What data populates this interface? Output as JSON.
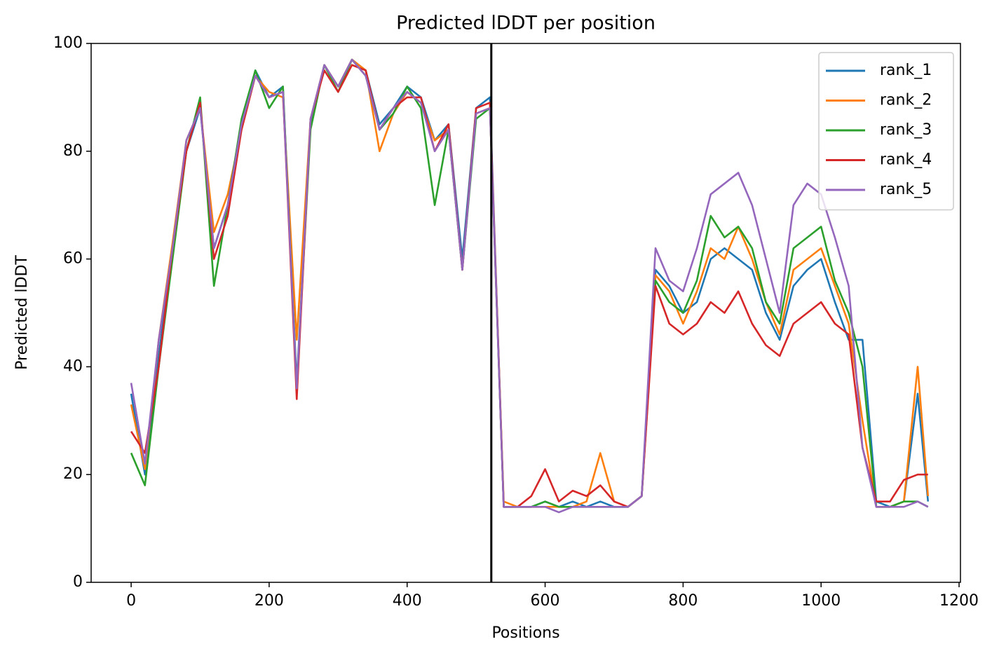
{
  "chart_data": {
    "type": "line",
    "title": "Predicted lDDT per position",
    "x_label": "Positions",
    "y_label": "Predicted lDDT",
    "x": [
      0,
      20,
      40,
      60,
      80,
      100,
      120,
      140,
      160,
      180,
      200,
      220,
      240,
      260,
      280,
      300,
      320,
      340,
      360,
      380,
      400,
      420,
      440,
      460,
      480,
      500,
      520,
      540,
      560,
      580,
      600,
      620,
      640,
      660,
      680,
      700,
      720,
      740,
      760,
      780,
      800,
      820,
      840,
      860,
      880,
      900,
      920,
      940,
      960,
      980,
      1000,
      1020,
      1040,
      1060,
      1080,
      1100,
      1120,
      1140,
      1155
    ],
    "series": [
      {
        "name": "rank_1",
        "color": "#1f77b4",
        "values": [
          35,
          20,
          42,
          62,
          80,
          88,
          62,
          70,
          85,
          95,
          90,
          92,
          37,
          85,
          96,
          92,
          97,
          95,
          85,
          88,
          92,
          90,
          82,
          85,
          60,
          88,
          90,
          14,
          14,
          14,
          15,
          14,
          15,
          14,
          15,
          14,
          14,
          16,
          58,
          55,
          50,
          52,
          60,
          62,
          60,
          58,
          50,
          45,
          55,
          58,
          60,
          52,
          45,
          45,
          15,
          14,
          15,
          35,
          15
        ]
      },
      {
        "name": "rank_2",
        "color": "#ff7f0e",
        "values": [
          33,
          21,
          45,
          63,
          82,
          88,
          65,
          72,
          84,
          94,
          91,
          90,
          45,
          86,
          96,
          92,
          97,
          95,
          80,
          87,
          91,
          89,
          82,
          84,
          58,
          87,
          88,
          15,
          14,
          14,
          14,
          14,
          14,
          15,
          24,
          15,
          14,
          16,
          57,
          54,
          48,
          54,
          62,
          60,
          66,
          60,
          52,
          46,
          58,
          60,
          62,
          55,
          48,
          30,
          14,
          14,
          15,
          40,
          16
        ]
      },
      {
        "name": "rank_3",
        "color": "#2ca02c",
        "values": [
          24,
          18,
          40,
          60,
          80,
          90,
          55,
          70,
          86,
          95,
          88,
          92,
          36,
          84,
          96,
          91,
          97,
          94,
          84,
          87,
          92,
          88,
          70,
          84,
          58,
          86,
          88,
          14,
          14,
          14,
          15,
          14,
          14,
          14,
          14,
          14,
          14,
          16,
          56,
          52,
          50,
          56,
          68,
          64,
          66,
          62,
          52,
          48,
          62,
          64,
          66,
          56,
          50,
          40,
          14,
          14,
          15,
          15,
          14
        ]
      },
      {
        "name": "rank_4",
        "color": "#d62728",
        "values": [
          28,
          24,
          40,
          62,
          80,
          89,
          60,
          68,
          84,
          94,
          90,
          91,
          34,
          86,
          95,
          91,
          96,
          95,
          84,
          88,
          90,
          90,
          80,
          85,
          58,
          88,
          89,
          14,
          14,
          16,
          21,
          15,
          17,
          16,
          18,
          15,
          14,
          16,
          55,
          48,
          46,
          48,
          52,
          50,
          54,
          48,
          44,
          42,
          48,
          50,
          52,
          48,
          46,
          25,
          15,
          15,
          19,
          20,
          20
        ]
      },
      {
        "name": "rank_5",
        "color": "#9467bd",
        "values": [
          37,
          22,
          45,
          62,
          82,
          88,
          62,
          70,
          85,
          94,
          90,
          91,
          36,
          86,
          96,
          92,
          97,
          94,
          84,
          88,
          91,
          89,
          80,
          84,
          58,
          87,
          88,
          14,
          14,
          14,
          14,
          13,
          14,
          14,
          14,
          14,
          14,
          16,
          62,
          56,
          54,
          62,
          72,
          74,
          76,
          70,
          60,
          50,
          70,
          74,
          72,
          64,
          55,
          25,
          14,
          14,
          14,
          15,
          14
        ]
      }
    ],
    "vlines": [
      522
    ],
    "vline_color": "#000000",
    "xlim": [
      -58,
      1202
    ],
    "ylim": [
      0,
      100
    ],
    "xticks": [
      0,
      200,
      400,
      600,
      800,
      1000,
      1200
    ],
    "yticks": [
      0,
      20,
      40,
      60,
      80,
      100
    ],
    "legend": "upper right",
    "grid": false
  }
}
